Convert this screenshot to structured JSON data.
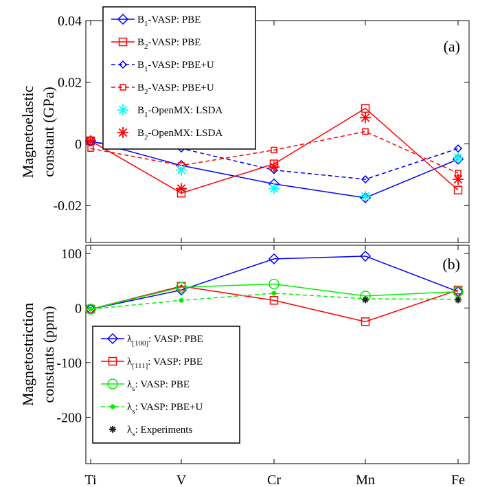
{
  "chart_data": [
    {
      "type": "line",
      "panel_label": "(a)",
      "ylabel_lines": [
        "Magnetoelastic",
        "constant (GPa)"
      ],
      "categories": [
        "Ti",
        "V",
        "Cr",
        "Mn",
        "Fe"
      ],
      "ylim": [
        -0.032,
        0.04
      ],
      "yticks": [
        {
          "value": 0.04,
          "label": "0.04"
        },
        {
          "value": 0.02,
          "label": "0.02"
        },
        {
          "value": 0,
          "label": "0"
        },
        {
          "value": -0.02,
          "label": "-0.02"
        }
      ],
      "grid": false,
      "legend_position": "top-left",
      "series": [
        {
          "name_main": "B",
          "name_sub": "1",
          "name_rest": "-VASP: PBE",
          "color": "#0000ff",
          "style": "solid",
          "marker": "diamond",
          "values": [
            0.001,
            -0.007,
            -0.013,
            -0.0175,
            -0.005
          ]
        },
        {
          "name_main": "B",
          "name_sub": "2",
          "name_rest": "-VASP: PBE",
          "color": "#ff0000",
          "style": "solid",
          "marker": "square",
          "values": [
            0.001,
            -0.016,
            -0.0065,
            0.0115,
            -0.015
          ]
        },
        {
          "name_main": "B",
          "name_sub": "1",
          "name_rest": "-VASP: PBE+U",
          "color": "#0000ff",
          "style": "dashed",
          "marker": "diamond-small",
          "values": [
            0.0005,
            -0.0015,
            -0.0085,
            -0.0115,
            -0.0015
          ]
        },
        {
          "name_main": "B",
          "name_sub": "2",
          "name_rest": "-VASP: PBE+U",
          "color": "#ff0000",
          "style": "dashed",
          "marker": "square-small",
          "values": [
            -0.0015,
            -0.007,
            -0.002,
            0.004,
            -0.0095
          ]
        },
        {
          "name_main": "B",
          "name_sub": "1",
          "name_rest": "-OpenMX: LSDA",
          "color": "#00ffff",
          "style": "none",
          "marker": "asterisk",
          "values": [
            0.001,
            -0.0085,
            -0.0145,
            -0.017,
            -0.0045
          ]
        },
        {
          "name_main": "B",
          "name_sub": "2",
          "name_rest": "-OpenMX: LSDA",
          "color": "#ff0000",
          "style": "none",
          "marker": "asterisk",
          "values": [
            0.001,
            -0.0145,
            -0.0075,
            0.0085,
            -0.0115
          ]
        }
      ]
    },
    {
      "type": "line",
      "panel_label": "(b)",
      "ylabel_lines": [
        "Magnetostriction",
        "constants (ppm)"
      ],
      "categories": [
        "Ti",
        "V",
        "Cr",
        "Mn",
        "Fe"
      ],
      "ylim": [
        -285,
        115
      ],
      "yticks": [
        {
          "value": 100,
          "label": "100"
        },
        {
          "value": 0,
          "label": "0"
        },
        {
          "value": -100,
          "label": "-100"
        },
        {
          "value": -200,
          "label": "-200"
        }
      ],
      "grid": false,
      "legend_position": "bottom-left",
      "series": [
        {
          "name_main": "λ",
          "name_sub": "[100]",
          "name_rest": ": VASP: PBE",
          "color": "#0000ff",
          "style": "solid",
          "marker": "diamond",
          "values": [
            -2,
            33,
            90,
            95,
            30
          ]
        },
        {
          "name_main": "λ",
          "name_sub": "[111]",
          "name_rest": ": VASP: PBE",
          "color": "#ff0000",
          "style": "solid",
          "marker": "square",
          "values": [
            -2,
            40,
            14,
            -25,
            33
          ]
        },
        {
          "name_main": "λ",
          "name_sub": "s",
          "name_rest": ": VASP: PBE",
          "color": "#00ee00",
          "style": "solid",
          "marker": "circle",
          "values": [
            -2,
            38,
            44,
            22,
            30
          ]
        },
        {
          "name_main": "λ",
          "name_sub": "s",
          "name_rest": ": VASP: PBE+U",
          "color": "#00ee00",
          "style": "dashed",
          "marker": "dot",
          "values": [
            -2,
            14,
            27,
            17,
            16
          ]
        },
        {
          "name_main": "λ",
          "name_sub": "s",
          "name_rest": ": Experiments",
          "color": "#222222",
          "style": "none",
          "marker": "asterisk-small",
          "values": [
            null,
            null,
            null,
            15,
            15
          ]
        }
      ]
    }
  ]
}
